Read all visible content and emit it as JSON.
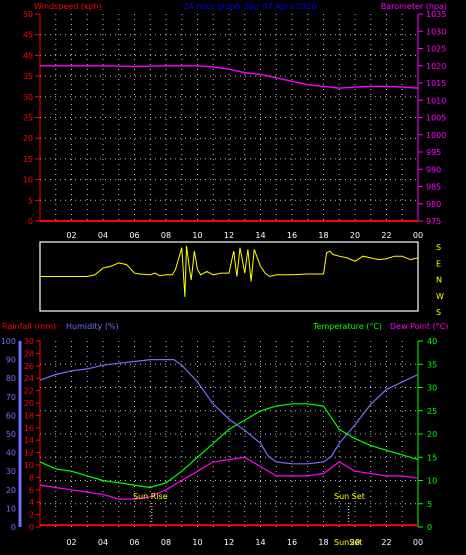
{
  "header": {
    "left_label": "Windspeed (kph)",
    "center_label": "24 hour graph day: 07 April 2026",
    "right_label": "Barometer (hpa)"
  },
  "lower_header": {
    "rainfall_label": "Rainfall (mm)",
    "humidity_label": "Humidity (%)",
    "temperature_label": "Temperature (°C)",
    "dewpoint_label": "Dew Point (°C)"
  },
  "annotations": {
    "sunrise_label": "Sun Rise",
    "sunset_label": "Sun Set",
    "sunset_bottom_label": "SunSet"
  },
  "colors": {
    "wind": "#ff0000",
    "barometer": "#ff00ff",
    "direction": "#ffff00",
    "humidity": "#7070ff",
    "temperature": "#00ff00",
    "dewpoint": "#ff00ff",
    "rain": "#ff0000",
    "center_title": "#0000ff",
    "grid": "#bbbbbb",
    "axis_frame": "#ffffff"
  },
  "chart_data": [
    {
      "type": "line",
      "panel": "wind-barometer",
      "xlabels": [
        "02",
        "04",
        "06",
        "08",
        "10",
        "12",
        "14",
        "16",
        "18",
        "20",
        "22",
        "00"
      ],
      "x_range_hours": [
        0,
        24
      ],
      "y_left": {
        "label": "Windspeed (kph)",
        "ticks": [
          0,
          5,
          10,
          15,
          20,
          25,
          30,
          35,
          40,
          45,
          50
        ],
        "range": [
          0,
          50
        ]
      },
      "y_right": {
        "label": "Barometer (hpa)",
        "ticks": [
          975,
          980,
          985,
          990,
          995,
          1000,
          1005,
          1010,
          1015,
          1020,
          1025,
          1030,
          1035
        ],
        "range": [
          975,
          1035
        ]
      },
      "series": [
        {
          "name": "Windspeed",
          "axis": "left",
          "x": [
            0,
            24
          ],
          "y": [
            0,
            0
          ]
        },
        {
          "name": "Barometer",
          "axis": "right",
          "x": [
            0,
            2,
            4,
            6,
            8,
            9,
            10,
            11,
            12,
            13,
            14,
            15,
            16,
            17,
            18,
            19,
            20,
            21,
            22,
            23,
            24
          ],
          "y": [
            1020,
            1020,
            1020,
            1019.8,
            1020,
            1020,
            1020,
            1019.7,
            1019,
            1018,
            1017.5,
            1016.5,
            1015.5,
            1014.5,
            1014,
            1013.5,
            1013.8,
            1014,
            1014,
            1013.8,
            1013.5
          ]
        }
      ]
    },
    {
      "type": "line",
      "panel": "wind-direction",
      "xlabels": [],
      "y_directions": [
        "S",
        "E",
        "N",
        "W",
        "S"
      ],
      "series": [
        {
          "name": "Wind Direction",
          "x": [
            0,
            3,
            3.5,
            4,
            4.5,
            5,
            5.5,
            6,
            6.3,
            7,
            7.3,
            7.6,
            8,
            8.4,
            8.6,
            9,
            9.2,
            9.3,
            9.5,
            9.6,
            9.8,
            10,
            10.2,
            10.6,
            11,
            11.5,
            12,
            12.3,
            12.5,
            12.7,
            13,
            13.2,
            13.4,
            13.6,
            14,
            14.3,
            14.6,
            15,
            16,
            17,
            18,
            18.2,
            18.4,
            18.6,
            19,
            19.5,
            20,
            20.5,
            21,
            21.5,
            22,
            22.5,
            23,
            23.5,
            24
          ],
          "y": [
            180,
            180,
            190,
            230,
            240,
            260,
            250,
            200,
            195,
            190,
            200,
            185,
            190,
            190,
            220,
            350,
            60,
            360,
            220,
            160,
            330,
            220,
            190,
            210,
            190,
            200,
            200,
            330,
            180,
            350,
            200,
            340,
            150,
            340,
            240,
            200,
            180,
            190,
            190,
            195,
            195,
            320,
            330,
            310,
            300,
            290,
            270,
            300,
            290,
            280,
            285,
            300,
            300,
            280,
            290
          ]
        }
      ]
    },
    {
      "type": "line",
      "panel": "temperature-humidity-rain",
      "xlabels": [
        "02",
        "04",
        "06",
        "08",
        "10",
        "12",
        "14",
        "16",
        "18",
        "20",
        "22",
        "00"
      ],
      "y_humidity": {
        "label": "Humidity (%)",
        "ticks": [
          0,
          10,
          20,
          30,
          40,
          50,
          60,
          70,
          80,
          90,
          100
        ],
        "range": [
          0,
          100
        ]
      },
      "y_rainfall": {
        "label": "Rainfall (mm)",
        "ticks": [
          0,
          2,
          4,
          6,
          8,
          10,
          12,
          14,
          16,
          18,
          20,
          22,
          24,
          26,
          28,
          30
        ],
        "range": [
          0,
          30
        ]
      },
      "y_temperature": {
        "label": "Temperature (°C)",
        "ticks": [
          0,
          5,
          10,
          15,
          20,
          25,
          30,
          35,
          40
        ],
        "range": [
          0,
          40
        ]
      },
      "sunrise_hour": 7.1,
      "sunset_hour": 19.6,
      "series": [
        {
          "name": "Humidity",
          "axis": "humidity",
          "x": [
            0,
            1,
            2,
            3,
            4,
            5,
            6,
            7,
            8,
            8.5,
            9,
            10,
            11,
            12,
            13,
            14,
            14.5,
            15,
            16,
            17,
            18,
            18.5,
            19,
            20,
            21,
            22,
            23,
            24
          ],
          "y": [
            79,
            82,
            84,
            85,
            87,
            88,
            89,
            90,
            90,
            90,
            87,
            78,
            66,
            58,
            52,
            45,
            38,
            35,
            34,
            34,
            35,
            38,
            45,
            55,
            66,
            74,
            78,
            82
          ]
        },
        {
          "name": "Temperature",
          "axis": "temperature",
          "x": [
            0,
            1,
            2,
            3,
            4,
            5,
            6,
            7,
            8,
            9,
            10,
            11,
            12,
            13,
            14,
            15,
            16,
            17,
            18,
            19,
            20,
            21,
            22,
            23,
            24
          ],
          "y": [
            14,
            12.5,
            12,
            11,
            10,
            9.5,
            9,
            8.5,
            9.5,
            12,
            15,
            18,
            21,
            23,
            25,
            26,
            26.5,
            26.5,
            26,
            21,
            19,
            17.5,
            16.5,
            15.5,
            14.5
          ]
        },
        {
          "name": "Dew Point",
          "axis": "temperature",
          "x": [
            0,
            1,
            2,
            3,
            4,
            5,
            6,
            7,
            8,
            9,
            10,
            11,
            12,
            13,
            14,
            15,
            16,
            17,
            18,
            19,
            20,
            21,
            22,
            23,
            24
          ],
          "y": [
            9,
            8.5,
            8,
            7.5,
            7,
            6,
            6,
            6.5,
            8,
            10,
            12,
            14,
            14.5,
            15,
            13,
            11,
            11,
            11,
            11.5,
            14,
            12,
            11.5,
            11,
            11,
            10.5
          ]
        },
        {
          "name": "Rainfall",
          "axis": "rainfall",
          "x": [
            0,
            24
          ],
          "y": [
            0.3,
            0.3
          ]
        }
      ]
    }
  ]
}
